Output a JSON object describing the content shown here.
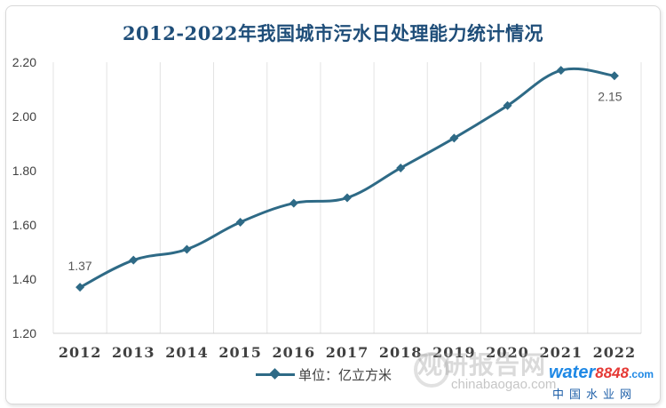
{
  "chart_data": {
    "type": "line",
    "title": "2012-2022年我国城市污水日处理能力统计情况",
    "categories": [
      "2012",
      "2013",
      "2014",
      "2015",
      "2016",
      "2017",
      "2018",
      "2019",
      "2020",
      "2021",
      "2022"
    ],
    "series": [
      {
        "name": "单位：亿立方米",
        "values": [
          1.37,
          1.47,
          1.51,
          1.61,
          1.68,
          1.7,
          1.81,
          1.92,
          2.04,
          2.17,
          2.15
        ],
        "color": "#2e6a86"
      }
    ],
    "data_labels": [
      {
        "category": "2012",
        "text": "1.37"
      },
      {
        "category": "2022",
        "text": "2.15"
      }
    ],
    "yticks": [
      "1.20",
      "1.40",
      "1.60",
      "1.80",
      "2.00",
      "2.20"
    ],
    "ylim": [
      1.2,
      2.2
    ],
    "grid": "vertical",
    "legend": "bottom",
    "smooth": true
  },
  "watermark": {
    "text_cn": "观研报告网",
    "text_en": "chinabaogao.com",
    "brand_a": "water",
    "brand_b": "8848",
    "brand_suffix": ".com",
    "brand_cn": "中国水业网"
  }
}
